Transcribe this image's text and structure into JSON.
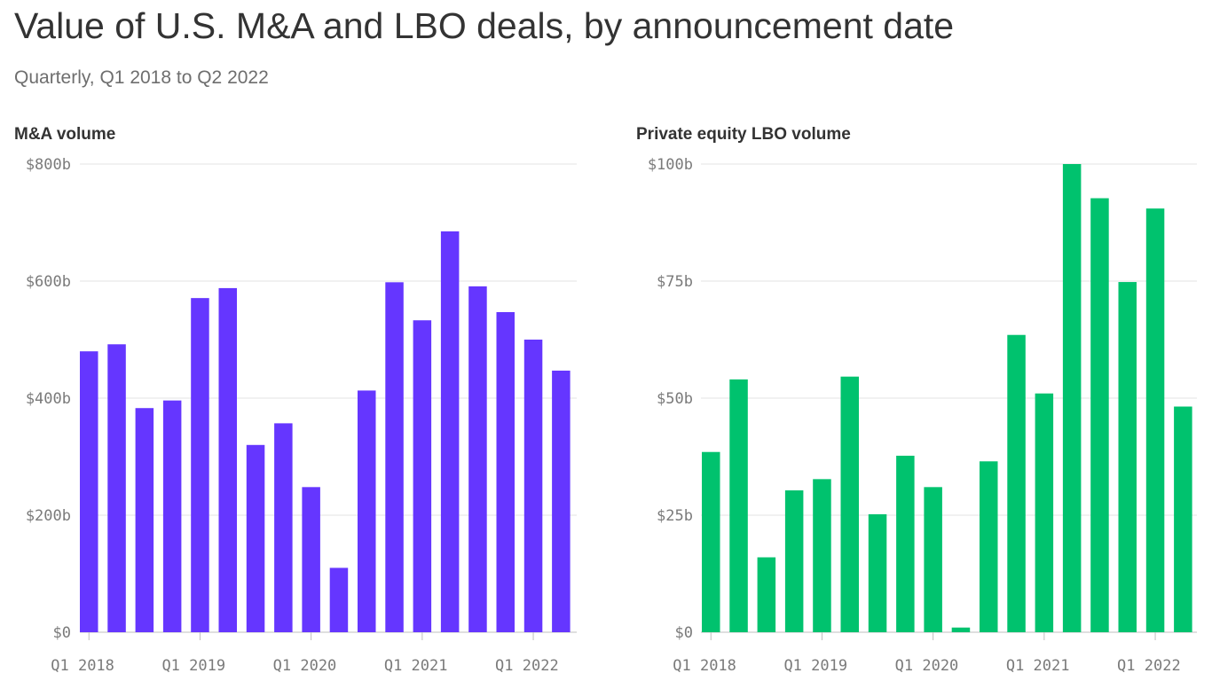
{
  "header": {
    "title": "Value of U.S. M&A and LBO deals, by announcement date",
    "subtitle": "Quarterly, Q1 2018 to Q2 2022"
  },
  "chart_data": [
    {
      "type": "bar",
      "title": "M&A volume",
      "color": "#6536ff",
      "categories": [
        "Q1 2018",
        "Q2 2018",
        "Q3 2018",
        "Q4 2018",
        "Q1 2019",
        "Q2 2019",
        "Q3 2019",
        "Q4 2019",
        "Q1 2020",
        "Q2 2020",
        "Q3 2020",
        "Q4 2020",
        "Q1 2021",
        "Q2 2021",
        "Q3 2021",
        "Q4 2021",
        "Q1 2022",
        "Q2 2022"
      ],
      "values": [
        480,
        492,
        383,
        396,
        571,
        588,
        320,
        357,
        248,
        110,
        413,
        598,
        533,
        685,
        591,
        547,
        500,
        447
      ],
      "ylim": [
        0,
        800
      ],
      "yticks": [
        0,
        200,
        400,
        600,
        800
      ],
      "ytick_labels": [
        "$0",
        "$200b",
        "$400b",
        "$600b",
        "$800b"
      ],
      "xtick_labels": [
        "Q1 2018",
        "Q1 2019",
        "Q1 2020",
        "Q1 2021",
        "Q1 2022"
      ],
      "xtick_categories": [
        "Q1 2018",
        "Q1 2019",
        "Q1 2020",
        "Q1 2021",
        "Q1 2022"
      ],
      "grid": true
    },
    {
      "type": "bar",
      "title": "Private equity LBO volume",
      "color": "#00c26e",
      "categories": [
        "Q1 2018",
        "Q2 2018",
        "Q3 2018",
        "Q4 2018",
        "Q1 2019",
        "Q2 2019",
        "Q3 2019",
        "Q4 2019",
        "Q1 2020",
        "Q2 2020",
        "Q3 2020",
        "Q4 2020",
        "Q1 2021",
        "Q2 2021",
        "Q3 2021",
        "Q4 2021",
        "Q1 2022",
        "Q2 2022"
      ],
      "values": [
        38.5,
        54,
        16,
        30.3,
        32.7,
        54.6,
        25.2,
        37.7,
        31,
        1,
        36.5,
        63.5,
        51,
        100,
        92.7,
        74.8,
        90.5,
        48.2
      ],
      "ylim": [
        0,
        100
      ],
      "yticks": [
        0,
        25,
        50,
        75,
        100
      ],
      "ytick_labels": [
        "$0",
        "$25b",
        "$50b",
        "$75b",
        "$100b"
      ],
      "xtick_labels": [
        "Q1 2018",
        "Q1 2019",
        "Q1 2020",
        "Q1 2021",
        "Q1 2022"
      ],
      "xtick_categories": [
        "Q1 2018",
        "Q1 2019",
        "Q1 2020",
        "Q1 2021",
        "Q1 2022"
      ],
      "grid": true
    }
  ]
}
